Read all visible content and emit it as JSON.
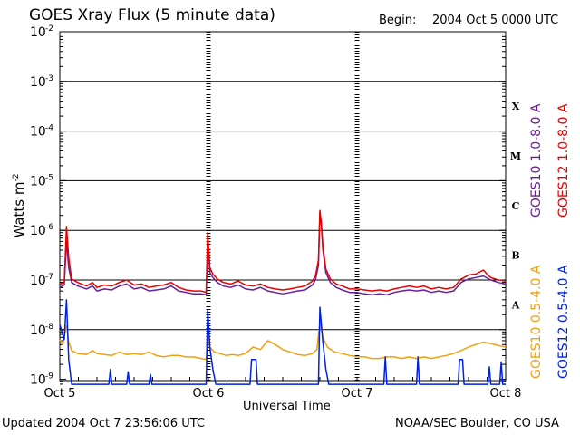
{
  "chart_data": {
    "type": "line",
    "title": "GOES Xray Flux (5 minute data)",
    "begin_label": "Begin:",
    "begin_value": "2004 Oct 5 0000 UTC",
    "xlabel": "Universal Time",
    "ylabel": "Watts m",
    "ylabel_exponent": "-2",
    "y_scale": "log",
    "ylim_exponents": [
      -9.1,
      -2
    ],
    "xlim_days": [
      0,
      3
    ],
    "x_ticks": [
      {
        "day": 0,
        "label": "Oct 5"
      },
      {
        "day": 1,
        "label": "Oct 6"
      },
      {
        "day": 2,
        "label": "Oct 7"
      },
      {
        "day": 3,
        "label": "Oct 8"
      }
    ],
    "y_ticks": [
      {
        "exp": -2,
        "label": "-2"
      },
      {
        "exp": -3,
        "label": "-3"
      },
      {
        "exp": -4,
        "label": "-4"
      },
      {
        "exp": -5,
        "label": "-5"
      },
      {
        "exp": -6,
        "label": "-6"
      },
      {
        "exp": -7,
        "label": "-7"
      },
      {
        "exp": -8,
        "label": "-8"
      },
      {
        "exp": -9,
        "label": "-9"
      }
    ],
    "flare_classes": [
      {
        "label": "X",
        "exp": -3.5
      },
      {
        "label": "M",
        "exp": -4.5
      },
      {
        "label": "C",
        "exp": -5.5
      },
      {
        "label": "B",
        "exp": -6.5
      },
      {
        "label": "A",
        "exp": -7.5
      }
    ],
    "grid": "horizontal lines at each decade from 1e-3 to 1e-8",
    "legend_placement": "right, vertical",
    "series": [
      {
        "name": "GOES10 1.0-8.0 A",
        "color": "#6a1f9a",
        "points": [
          [
            0.0,
            -7.15
          ],
          [
            0.03,
            -7.1
          ],
          [
            0.045,
            -6.22
          ],
          [
            0.06,
            -6.75
          ],
          [
            0.08,
            -7.05
          ],
          [
            0.12,
            -7.12
          ],
          [
            0.18,
            -7.18
          ],
          [
            0.22,
            -7.12
          ],
          [
            0.25,
            -7.22
          ],
          [
            0.3,
            -7.18
          ],
          [
            0.35,
            -7.2
          ],
          [
            0.4,
            -7.12
          ],
          [
            0.45,
            -7.08
          ],
          [
            0.5,
            -7.18
          ],
          [
            0.55,
            -7.15
          ],
          [
            0.6,
            -7.22
          ],
          [
            0.65,
            -7.2
          ],
          [
            0.7,
            -7.18
          ],
          [
            0.75,
            -7.12
          ],
          [
            0.8,
            -7.22
          ],
          [
            0.85,
            -7.25
          ],
          [
            0.9,
            -7.28
          ],
          [
            0.95,
            -7.28
          ],
          [
            0.985,
            -7.3
          ],
          [
            0.995,
            -6.3
          ],
          [
            1.01,
            -6.85
          ],
          [
            1.03,
            -6.95
          ],
          [
            1.06,
            -7.05
          ],
          [
            1.1,
            -7.12
          ],
          [
            1.15,
            -7.15
          ],
          [
            1.2,
            -7.1
          ],
          [
            1.25,
            -7.18
          ],
          [
            1.3,
            -7.2
          ],
          [
            1.35,
            -7.15
          ],
          [
            1.4,
            -7.22
          ],
          [
            1.45,
            -7.25
          ],
          [
            1.5,
            -7.28
          ],
          [
            1.55,
            -7.25
          ],
          [
            1.6,
            -7.22
          ],
          [
            1.65,
            -7.2
          ],
          [
            1.7,
            -7.1
          ],
          [
            1.72,
            -7.0
          ],
          [
            1.74,
            -6.7
          ],
          [
            1.75,
            -5.65
          ],
          [
            1.76,
            -5.9
          ],
          [
            1.77,
            -6.4
          ],
          [
            1.79,
            -6.85
          ],
          [
            1.82,
            -7.05
          ],
          [
            1.86,
            -7.15
          ],
          [
            1.9,
            -7.2
          ],
          [
            1.95,
            -7.25
          ],
          [
            2.0,
            -7.25
          ],
          [
            2.05,
            -7.28
          ],
          [
            2.1,
            -7.3
          ],
          [
            2.15,
            -7.28
          ],
          [
            2.2,
            -7.3
          ],
          [
            2.25,
            -7.25
          ],
          [
            2.3,
            -7.22
          ],
          [
            2.35,
            -7.2
          ],
          [
            2.4,
            -7.22
          ],
          [
            2.45,
            -7.2
          ],
          [
            2.5,
            -7.25
          ],
          [
            2.55,
            -7.22
          ],
          [
            2.6,
            -7.25
          ],
          [
            2.65,
            -7.22
          ],
          [
            2.7,
            -7.05
          ],
          [
            2.72,
            -7.02
          ],
          [
            2.75,
            -6.98
          ],
          [
            2.8,
            -6.95
          ],
          [
            2.85,
            -6.92
          ],
          [
            2.9,
            -7.0
          ],
          [
            2.95,
            -7.05
          ],
          [
            3.0,
            -7.08
          ]
        ]
      },
      {
        "name": "GOES12 1.0-8.0 A",
        "color": "#e60000",
        "points": [
          [
            0.0,
            -7.08
          ],
          [
            0.03,
            -7.05
          ],
          [
            0.045,
            -5.92
          ],
          [
            0.06,
            -6.55
          ],
          [
            0.08,
            -6.98
          ],
          [
            0.12,
            -7.05
          ],
          [
            0.18,
            -7.12
          ],
          [
            0.22,
            -7.05
          ],
          [
            0.25,
            -7.15
          ],
          [
            0.3,
            -7.1
          ],
          [
            0.35,
            -7.12
          ],
          [
            0.4,
            -7.05
          ],
          [
            0.45,
            -7.0
          ],
          [
            0.5,
            -7.1
          ],
          [
            0.55,
            -7.08
          ],
          [
            0.6,
            -7.15
          ],
          [
            0.65,
            -7.12
          ],
          [
            0.7,
            -7.1
          ],
          [
            0.75,
            -7.05
          ],
          [
            0.8,
            -7.15
          ],
          [
            0.85,
            -7.2
          ],
          [
            0.9,
            -7.22
          ],
          [
            0.95,
            -7.22
          ],
          [
            0.985,
            -7.25
          ],
          [
            0.995,
            -6.05
          ],
          [
            1.01,
            -6.75
          ],
          [
            1.03,
            -6.88
          ],
          [
            1.06,
            -6.98
          ],
          [
            1.1,
            -7.05
          ],
          [
            1.15,
            -7.08
          ],
          [
            1.2,
            -7.02
          ],
          [
            1.25,
            -7.1
          ],
          [
            1.3,
            -7.12
          ],
          [
            1.35,
            -7.08
          ],
          [
            1.4,
            -7.15
          ],
          [
            1.45,
            -7.18
          ],
          [
            1.5,
            -7.2
          ],
          [
            1.55,
            -7.18
          ],
          [
            1.6,
            -7.15
          ],
          [
            1.65,
            -7.12
          ],
          [
            1.7,
            -7.02
          ],
          [
            1.72,
            -6.92
          ],
          [
            1.74,
            -6.6
          ],
          [
            1.75,
            -5.6
          ],
          [
            1.76,
            -5.85
          ],
          [
            1.77,
            -6.32
          ],
          [
            1.79,
            -6.78
          ],
          [
            1.82,
            -6.98
          ],
          [
            1.86,
            -7.08
          ],
          [
            1.9,
            -7.12
          ],
          [
            1.95,
            -7.18
          ],
          [
            2.0,
            -7.18
          ],
          [
            2.05,
            -7.2
          ],
          [
            2.1,
            -7.22
          ],
          [
            2.15,
            -7.2
          ],
          [
            2.2,
            -7.22
          ],
          [
            2.25,
            -7.18
          ],
          [
            2.3,
            -7.15
          ],
          [
            2.35,
            -7.12
          ],
          [
            2.4,
            -7.15
          ],
          [
            2.45,
            -7.12
          ],
          [
            2.5,
            -7.18
          ],
          [
            2.55,
            -7.15
          ],
          [
            2.6,
            -7.18
          ],
          [
            2.65,
            -7.15
          ],
          [
            2.7,
            -6.98
          ],
          [
            2.72,
            -6.95
          ],
          [
            2.75,
            -6.9
          ],
          [
            2.8,
            -6.88
          ],
          [
            2.85,
            -6.8
          ],
          [
            2.88,
            -6.9
          ],
          [
            2.9,
            -6.95
          ],
          [
            2.95,
            -7.0
          ],
          [
            3.0,
            -7.02
          ]
        ]
      },
      {
        "name": "GOES10 0.5-4.0 A",
        "color": "#f0a010",
        "points": [
          [
            0.0,
            -8.2
          ],
          [
            0.02,
            -8.3
          ],
          [
            0.045,
            -7.92
          ],
          [
            0.06,
            -8.25
          ],
          [
            0.08,
            -8.42
          ],
          [
            0.12,
            -8.48
          ],
          [
            0.18,
            -8.5
          ],
          [
            0.22,
            -8.42
          ],
          [
            0.25,
            -8.48
          ],
          [
            0.3,
            -8.5
          ],
          [
            0.35,
            -8.52
          ],
          [
            0.4,
            -8.45
          ],
          [
            0.45,
            -8.5
          ],
          [
            0.5,
            -8.48
          ],
          [
            0.55,
            -8.5
          ],
          [
            0.6,
            -8.45
          ],
          [
            0.65,
            -8.52
          ],
          [
            0.7,
            -8.55
          ],
          [
            0.75,
            -8.52
          ],
          [
            0.8,
            -8.52
          ],
          [
            0.85,
            -8.55
          ],
          [
            0.9,
            -8.55
          ],
          [
            0.95,
            -8.58
          ],
          [
            0.985,
            -8.6
          ],
          [
            0.995,
            -8.05
          ],
          [
            1.01,
            -8.35
          ],
          [
            1.04,
            -8.45
          ],
          [
            1.08,
            -8.48
          ],
          [
            1.12,
            -8.52
          ],
          [
            1.16,
            -8.5
          ],
          [
            1.2,
            -8.52
          ],
          [
            1.25,
            -8.48
          ],
          [
            1.3,
            -8.35
          ],
          [
            1.35,
            -8.4
          ],
          [
            1.4,
            -8.22
          ],
          [
            1.45,
            -8.3
          ],
          [
            1.5,
            -8.4
          ],
          [
            1.55,
            -8.45
          ],
          [
            1.6,
            -8.5
          ],
          [
            1.65,
            -8.52
          ],
          [
            1.7,
            -8.48
          ],
          [
            1.73,
            -8.4
          ],
          [
            1.75,
            -7.85
          ],
          [
            1.77,
            -8.15
          ],
          [
            1.8,
            -8.35
          ],
          [
            1.85,
            -8.45
          ],
          [
            1.9,
            -8.48
          ],
          [
            1.95,
            -8.52
          ],
          [
            2.0,
            -8.55
          ],
          [
            2.05,
            -8.55
          ],
          [
            2.1,
            -8.58
          ],
          [
            2.15,
            -8.58
          ],
          [
            2.2,
            -8.55
          ],
          [
            2.25,
            -8.55
          ],
          [
            2.3,
            -8.58
          ],
          [
            2.35,
            -8.55
          ],
          [
            2.4,
            -8.58
          ],
          [
            2.45,
            -8.55
          ],
          [
            2.5,
            -8.58
          ],
          [
            2.55,
            -8.55
          ],
          [
            2.6,
            -8.52
          ],
          [
            2.65,
            -8.48
          ],
          [
            2.7,
            -8.42
          ],
          [
            2.75,
            -8.35
          ],
          [
            2.8,
            -8.3
          ],
          [
            2.85,
            -8.25
          ],
          [
            2.9,
            -8.28
          ],
          [
            2.95,
            -8.32
          ],
          [
            3.0,
            -8.35
          ]
        ]
      },
      {
        "name": "GOES12 0.5-4.0 A",
        "color": "#0022e0",
        "points": [
          [
            0.0,
            -7.9
          ],
          [
            0.03,
            -8.2
          ],
          [
            0.045,
            -7.4
          ],
          [
            0.06,
            -8.6
          ],
          [
            0.08,
            -9.1
          ],
          [
            0.33,
            -9.1
          ],
          [
            0.34,
            -8.8
          ],
          [
            0.35,
            -9.1
          ],
          [
            0.45,
            -9.1
          ],
          [
            0.46,
            -8.85
          ],
          [
            0.47,
            -9.1
          ],
          [
            0.6,
            -9.1
          ],
          [
            0.61,
            -8.9
          ],
          [
            0.62,
            -9.1
          ],
          [
            0.985,
            -9.1
          ],
          [
            0.995,
            -7.6
          ],
          [
            1.01,
            -8.35
          ],
          [
            1.03,
            -8.8
          ],
          [
            1.05,
            -9.1
          ],
          [
            1.28,
            -9.1
          ],
          [
            1.29,
            -8.6
          ],
          [
            1.32,
            -8.6
          ],
          [
            1.33,
            -9.1
          ],
          [
            1.74,
            -9.1
          ],
          [
            1.75,
            -7.55
          ],
          [
            1.77,
            -8.25
          ],
          [
            1.79,
            -8.8
          ],
          [
            1.81,
            -9.1
          ],
          [
            2.18,
            -9.1
          ],
          [
            2.19,
            -8.55
          ],
          [
            2.2,
            -9.1
          ],
          [
            2.4,
            -9.1
          ],
          [
            2.41,
            -8.55
          ],
          [
            2.42,
            -9.1
          ],
          [
            2.68,
            -9.1
          ],
          [
            2.69,
            -8.6
          ],
          [
            2.71,
            -8.6
          ],
          [
            2.72,
            -9.1
          ],
          [
            2.88,
            -9.1
          ],
          [
            2.89,
            -8.75
          ],
          [
            2.9,
            -9.1
          ],
          [
            2.96,
            -9.1
          ],
          [
            2.97,
            -8.65
          ],
          [
            2.98,
            -9.1
          ],
          [
            3.0,
            -9.1
          ]
        ]
      }
    ]
  },
  "footer": {
    "updated": "Updated 2004 Oct  7 23:56:06 UTC",
    "credit": "NOAA/SEC Boulder, CO USA"
  }
}
